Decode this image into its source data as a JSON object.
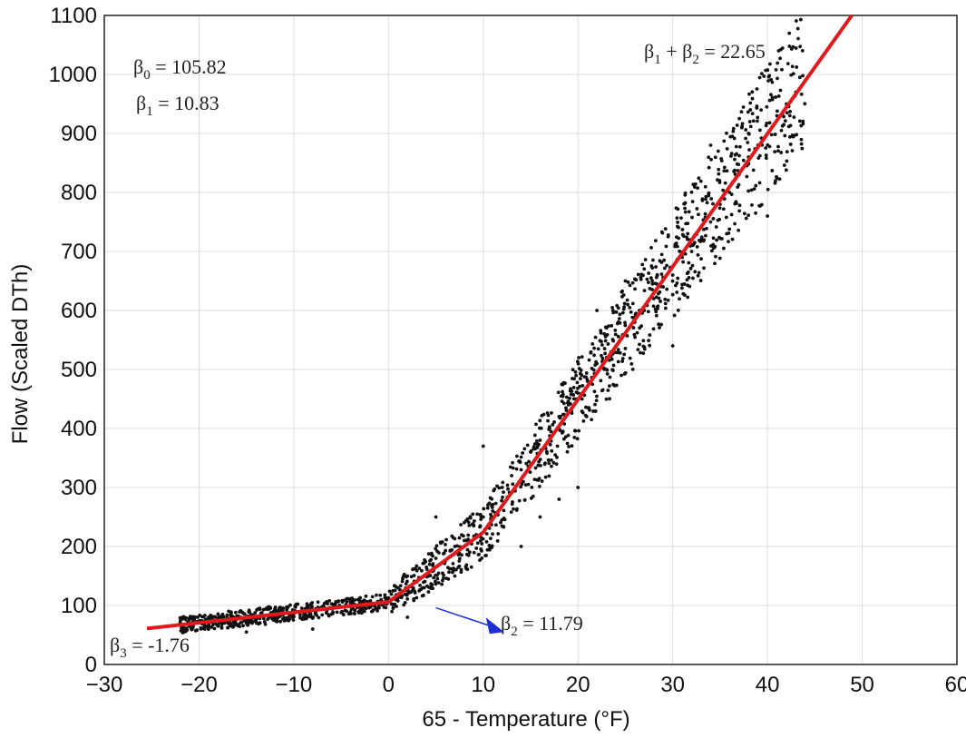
{
  "chart_data": {
    "type": "scatter",
    "xlabel": "65 - Temperature (°F)",
    "ylabel": "Flow (Scaled DTh)",
    "xlim": [
      -30,
      60
    ],
    "ylim": [
      0,
      1100
    ],
    "x_ticks": [
      -30,
      -20,
      -10,
      0,
      10,
      20,
      30,
      40,
      50,
      60
    ],
    "y_ticks": [
      0,
      100,
      200,
      300,
      400,
      500,
      600,
      700,
      800,
      900,
      1000,
      1100
    ],
    "grid": true,
    "colors": {
      "points": "#111111",
      "fit_line": "#e0191d",
      "arrow": "#1f2fd6",
      "grid": "#dcdcdc"
    },
    "series": [
      {
        "type": "scatter",
        "points": [
          [
            -22,
            70
          ],
          [
            -21,
            78
          ],
          [
            -20,
            72
          ],
          [
            -19,
            80
          ],
          [
            -18,
            65
          ],
          [
            -17,
            75
          ],
          [
            -16,
            82
          ],
          [
            -15,
            70
          ],
          [
            -14,
            76
          ],
          [
            -13,
            68
          ],
          [
            -12,
            80
          ],
          [
            -11,
            74
          ],
          [
            -10,
            86
          ],
          [
            -9,
            78
          ],
          [
            -8,
            92
          ],
          [
            -7,
            84
          ],
          [
            -6,
            95
          ],
          [
            -5,
            88
          ],
          [
            -4,
            100
          ],
          [
            -3,
            92
          ],
          [
            -2,
            105
          ],
          [
            -1,
            96
          ],
          [
            0,
            110
          ],
          [
            1,
            130
          ],
          [
            2,
            150
          ],
          [
            3,
            140
          ],
          [
            4,
            165
          ],
          [
            5,
            180
          ],
          [
            6,
            175
          ],
          [
            7,
            200
          ],
          [
            8,
            210
          ],
          [
            9,
            235
          ],
          [
            10,
            250
          ],
          [
            11,
            260
          ],
          [
            12,
            300
          ],
          [
            13,
            320
          ],
          [
            14,
            330
          ],
          [
            15,
            360
          ],
          [
            16,
            380
          ],
          [
            17,
            400
          ],
          [
            18,
            420
          ],
          [
            19,
            440
          ],
          [
            20,
            460
          ],
          [
            21,
            480
          ],
          [
            22,
            510
          ],
          [
            23,
            500
          ],
          [
            24,
            540
          ],
          [
            25,
            560
          ],
          [
            26,
            580
          ],
          [
            27,
            600
          ],
          [
            28,
            620
          ],
          [
            29,
            640
          ],
          [
            30,
            660
          ],
          [
            31,
            690
          ],
          [
            32,
            700
          ],
          [
            33,
            720
          ],
          [
            34,
            750
          ],
          [
            35,
            780
          ],
          [
            36,
            800
          ],
          [
            37,
            830
          ],
          [
            38,
            860
          ],
          [
            39,
            880
          ],
          [
            40,
            900
          ],
          [
            41,
            930
          ],
          [
            42,
            950
          ],
          [
            43,
            970
          ],
          [
            16,
            250
          ],
          [
            20,
            300
          ],
          [
            30,
            540
          ],
          [
            25,
            650
          ],
          [
            34,
            880
          ],
          [
            40,
            760
          ],
          [
            14,
            200
          ],
          [
            10,
            370
          ],
          [
            22,
            600
          ],
          [
            18,
            280
          ],
          [
            -15,
            55
          ],
          [
            -8,
            60
          ],
          [
            2,
            80
          ],
          [
            5,
            250
          ]
        ]
      },
      {
        "type": "line",
        "name": "fit",
        "points": [
          [
            -25.5,
            61
          ],
          [
            0,
            106
          ],
          [
            10,
            224
          ],
          [
            48.9,
            1100
          ]
        ]
      }
    ],
    "annotations": [
      {
        "text": "β",
        "sub": "0",
        "rest": " = 105.82"
      },
      {
        "text": "β",
        "sub": "1",
        "rest": " = 10.83"
      },
      {
        "text": "β",
        "sub": "1",
        "mid": " + β",
        "sub2": "2",
        "rest": " = 22.65"
      },
      {
        "text": "β",
        "sub": "2",
        "rest": " = 11.79"
      },
      {
        "text": "β",
        "sub": "3",
        "rest": " = -1.76"
      }
    ]
  }
}
